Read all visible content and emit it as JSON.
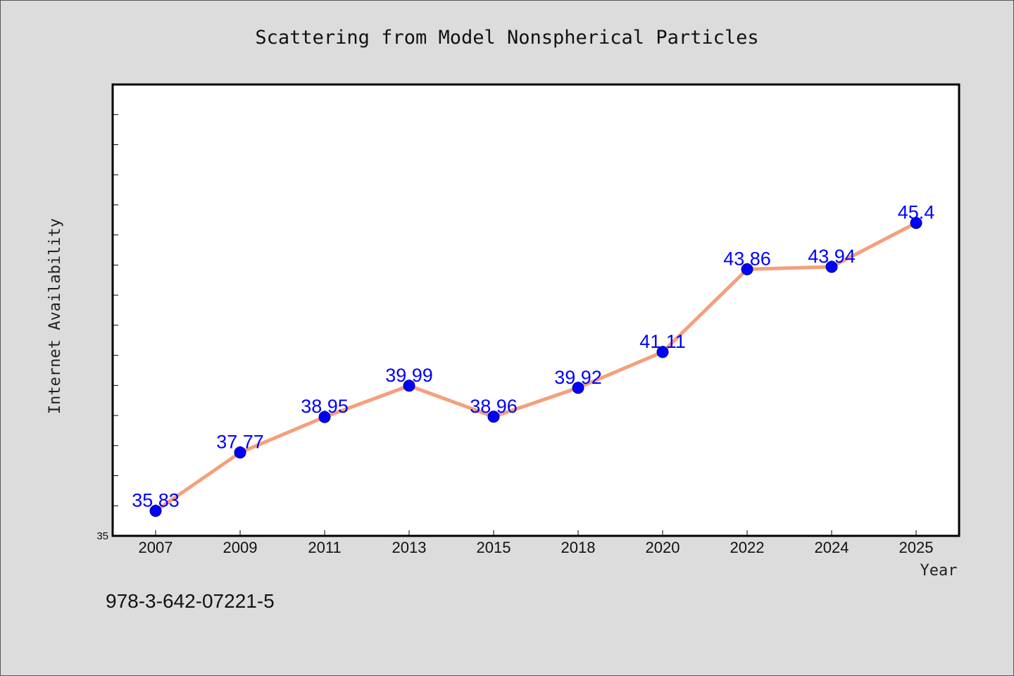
{
  "footer": {
    "isbn": "978-3-642-07221-5"
  },
  "colors": {
    "background": "#dcdcdc",
    "plot_background": "#ffffff",
    "line": "#f4a07c",
    "marker": "#0000ff",
    "data_label": "#0000ff"
  },
  "chart_data": {
    "type": "line",
    "title": "Scattering from Model Nonspherical Particles",
    "xlabel": "Year",
    "ylabel": "Internet Availability",
    "categories": [
      "2007",
      "2009",
      "2011",
      "2013",
      "2015",
      "2018",
      "2020",
      "2022",
      "2024",
      "2025"
    ],
    "values": [
      35.83,
      37.77,
      38.95,
      39.99,
      38.96,
      39.92,
      41.11,
      43.86,
      43.94,
      45.4
    ],
    "data_labels": [
      "35.83",
      "37.77",
      "38.95",
      "39.99",
      "38.96",
      "39.92",
      "41.11",
      "43.86",
      "43.94",
      "45.4"
    ],
    "y_tick_labels": [
      "35"
    ],
    "ylim": [
      35,
      50
    ],
    "grid": false,
    "legend": "none",
    "marker": "circle"
  }
}
